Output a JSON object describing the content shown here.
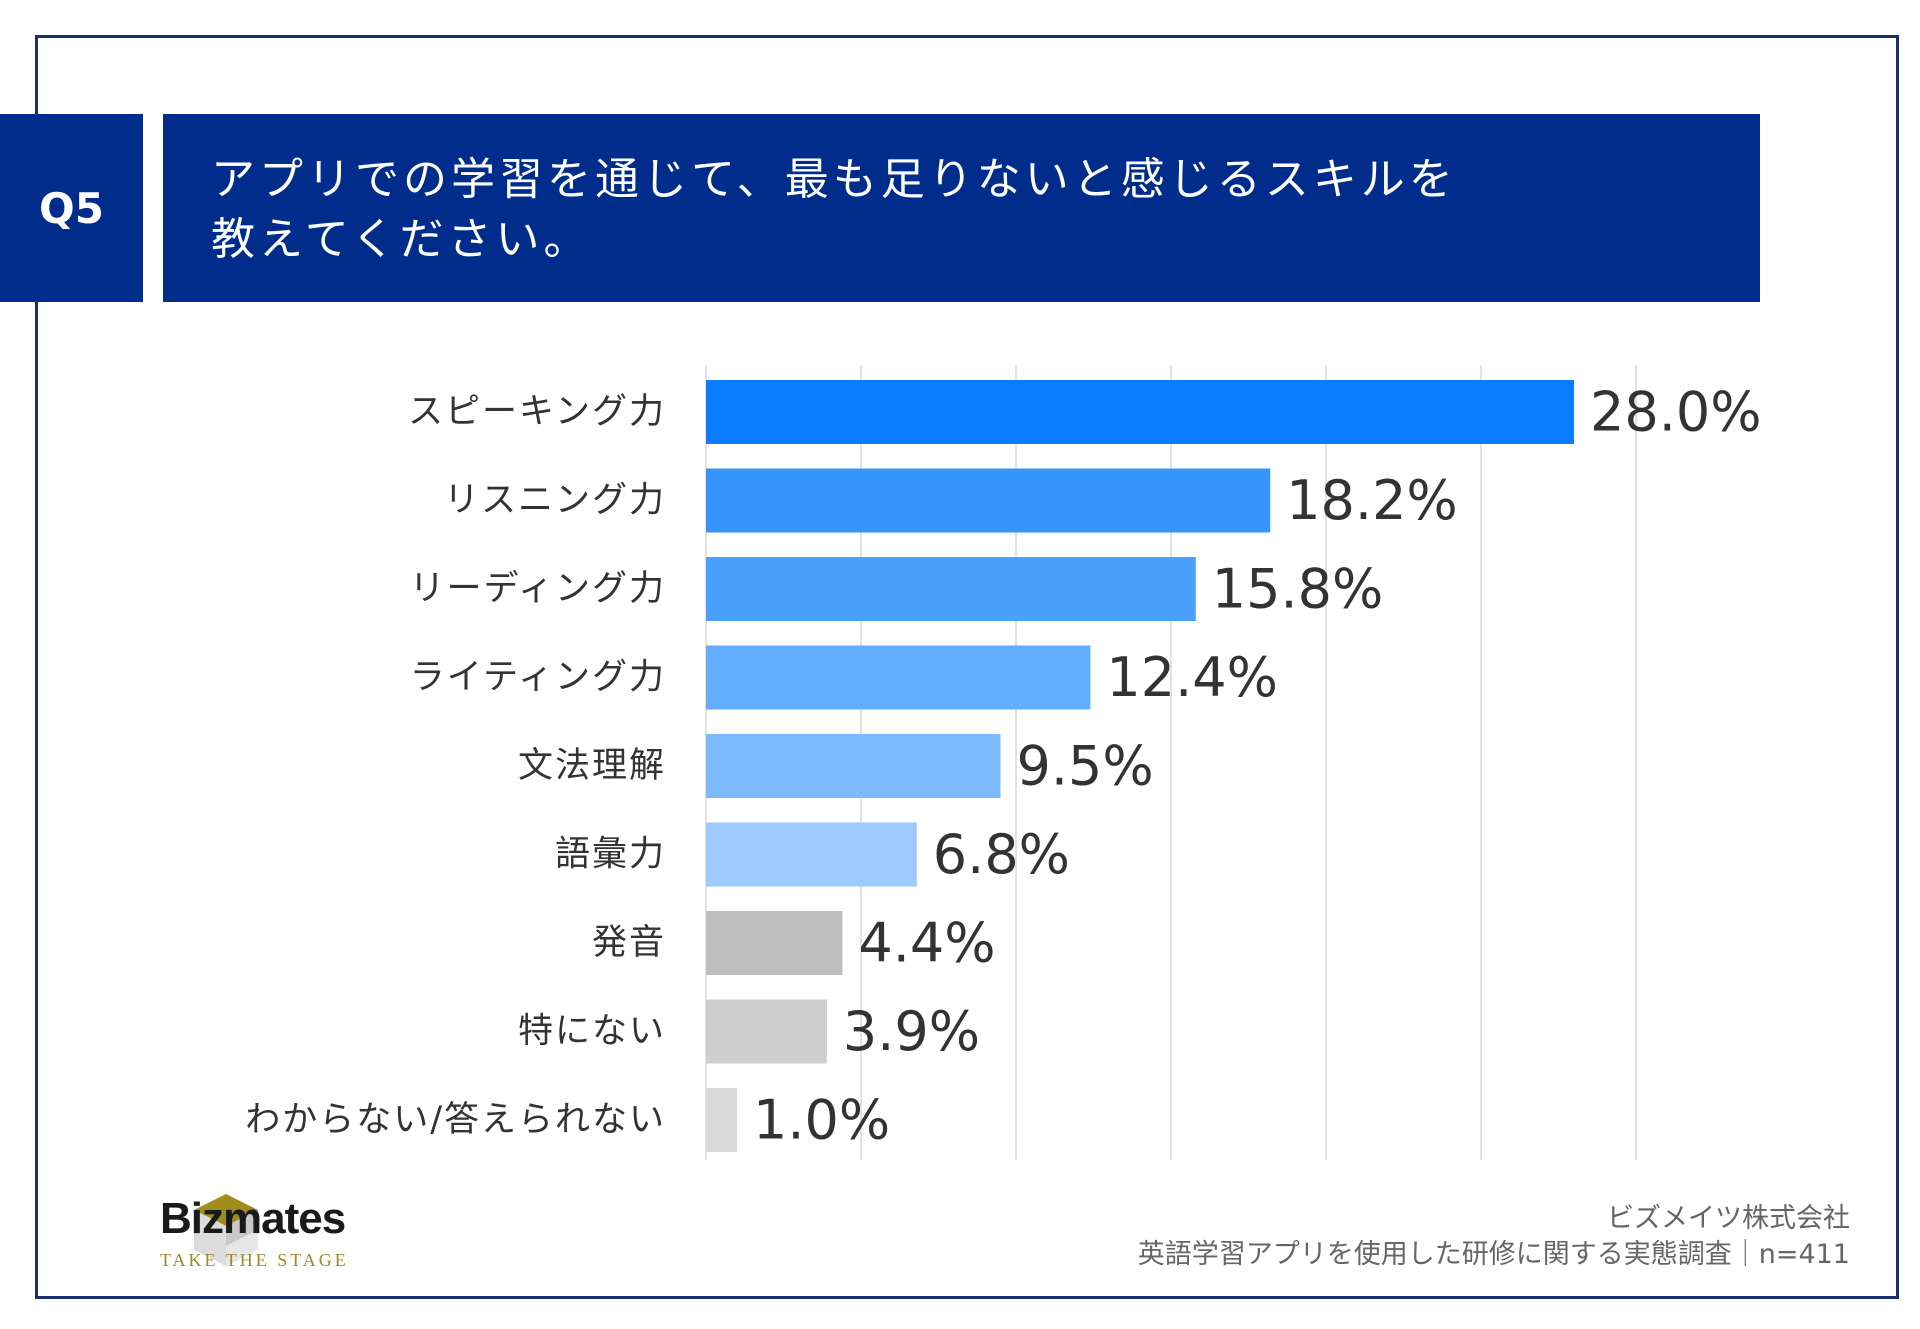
{
  "question": {
    "badge": "Q5",
    "title_lines": [
      "アプリでの学習を通じて、最も足りないと感じるスキルを",
      "教えてください。"
    ]
  },
  "chart_data": {
    "type": "bar",
    "orientation": "horizontal",
    "categories": [
      "スピーキング力",
      "リスニング力",
      "リーディング力",
      "ライティング力",
      "文法理解",
      "語彙力",
      "発音",
      "特にない",
      "わからない/答えられない"
    ],
    "values": [
      28.0,
      18.2,
      15.8,
      12.4,
      9.5,
      6.8,
      4.4,
      3.9,
      1.0
    ],
    "value_labels": [
      "28.0%",
      "18.2%",
      "15.8%",
      "12.4%",
      "9.5%",
      "6.8%",
      "4.4%",
      "3.9%",
      "1.0%"
    ],
    "colors": [
      "#0a7cff",
      "#3595fd",
      "#4aa0fd",
      "#62adfd",
      "#7db9fd",
      "#9ccafd",
      "#bdbdbd",
      "#cecece",
      "#dadada"
    ],
    "xlim": [
      0,
      30
    ],
    "grid": true
  },
  "footer": {
    "logo_name": "Bizmates",
    "logo_tagline": "TAKE THE STAGE",
    "source_company": "ビズメイツ株式会社",
    "source_survey": "英語学習アプリを使用した研修に関する実態調査｜n=411"
  }
}
